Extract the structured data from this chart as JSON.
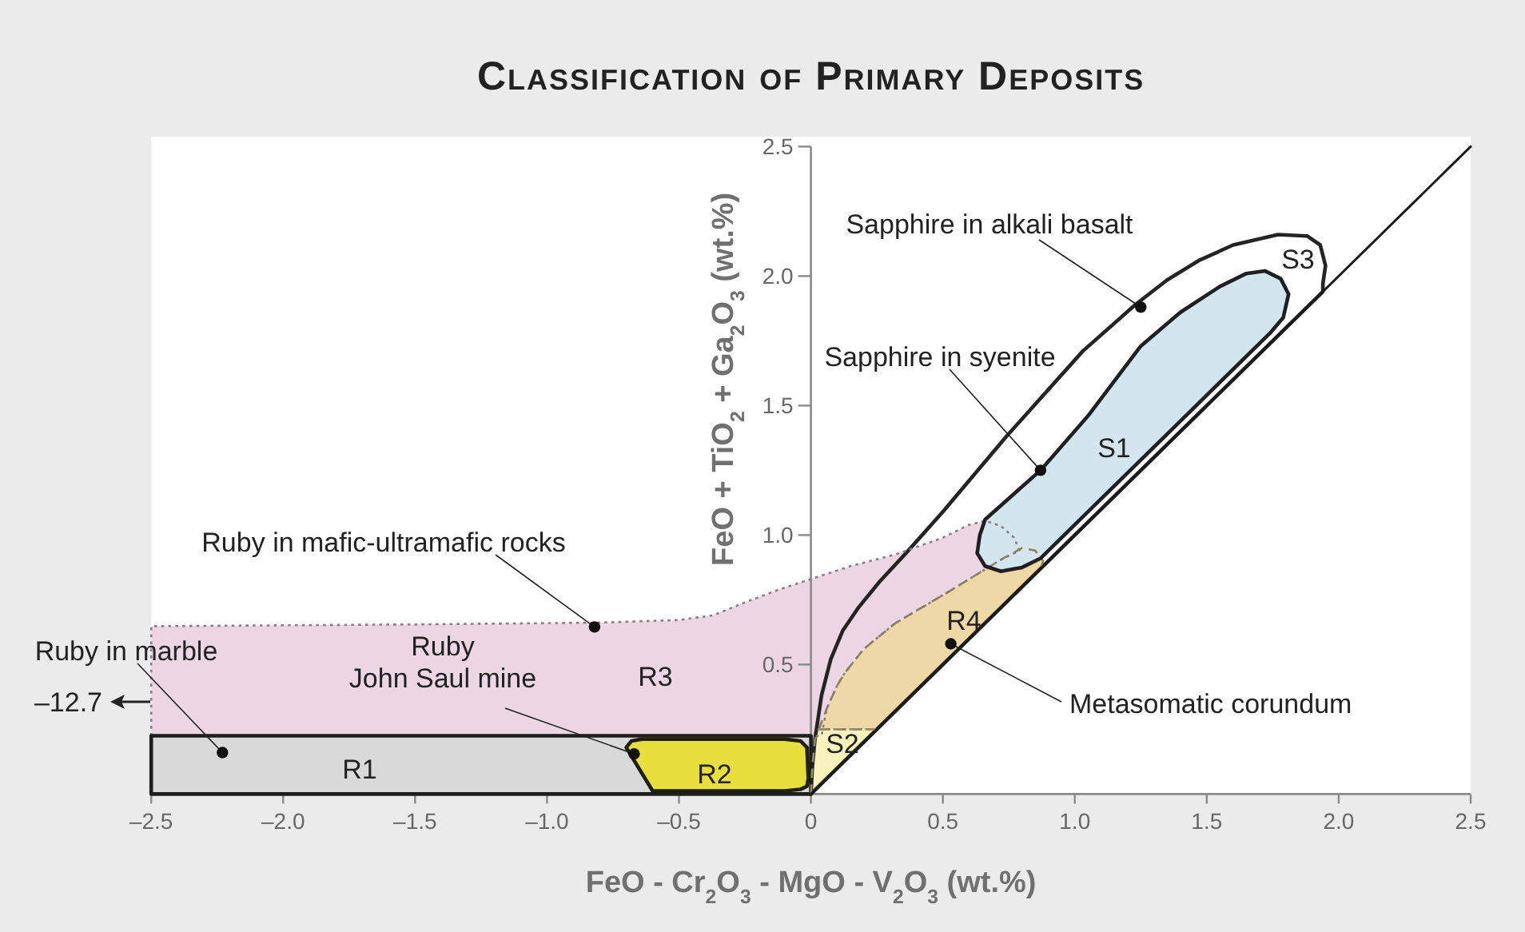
{
  "chart_data": {
    "type": "area",
    "title": "Classification of Primary Deposits",
    "xlabel": "FeO - Cr$_{2}$O$_{3}$ - MgO - V$_{2}$O$_{3}$ (wt.%)",
    "ylabel": "FeO + TiO$_{2}$ + Ga$_{2}$O$_{3}$ (wt.%)",
    "xlim": [
      -2.5,
      2.5
    ],
    "ylim": [
      0,
      2.5
    ],
    "xticks": [
      {
        "value": -2.5,
        "label": "–2.5"
      },
      {
        "value": -2,
        "label": "–2.0"
      },
      {
        "value": -1.5,
        "label": "–1.5"
      },
      {
        "value": -1,
        "label": "–1.0"
      },
      {
        "value": -0.5,
        "label": "–0.5"
      },
      0,
      0.5,
      {
        "value": 1,
        "label": "1.0"
      },
      1.5,
      {
        "value": 2,
        "label": "2.0"
      },
      2.5
    ],
    "yticks": [
      0.5,
      {
        "value": 1,
        "label": "1.0"
      },
      1.5,
      {
        "value": 2,
        "label": "2.0"
      },
      2.5
    ],
    "series": [
      {
        "name": "S3",
        "color": "#ffffff",
        "line_style": "solid",
        "x": [
          0,
          0.005,
          0.015,
          0.04,
          0.075,
          0.12,
          0.18,
          0.26,
          0.36,
          0.5,
          0.74,
          1.03,
          1.23,
          1.35,
          1.47,
          1.6,
          1.77,
          1.88,
          1.93,
          1.95,
          1.94,
          1.94
        ],
        "values": [
          0,
          0.1,
          0.21,
          0.38,
          0.52,
          0.63,
          0.72,
          0.82,
          0.93,
          1.09,
          1.38,
          1.71,
          1.89,
          1.985,
          2.06,
          2.12,
          2.16,
          2.155,
          2.12,
          2.04,
          1.97,
          1.94
        ]
      },
      {
        "name": "R3",
        "color": "#ecd6e3",
        "line_style": "dotted",
        "x": [
          -2.5,
          -2.5,
          -1.5,
          -0.8,
          -0.5,
          -0.37,
          -0.25,
          -0.12,
          0,
          0.15,
          0.32,
          0.5,
          0.6,
          0.66,
          0.72,
          0.77,
          0.79,
          0.72,
          0.52,
          0.32,
          0.2,
          0.13,
          0.1,
          0.06,
          0.04
        ],
        "values": [
          0.225,
          0.648,
          0.655,
          0.662,
          0.672,
          0.69,
          0.74,
          0.79,
          0.83,
          0.88,
          0.925,
          0.99,
          1.04,
          1.055,
          1.035,
          0.99,
          0.94,
          0.905,
          0.78,
          0.66,
          0.56,
          0.47,
          0.42,
          0.33,
          0.225
        ]
      },
      {
        "name": "R1",
        "color": "#d9d9d9",
        "line_style": "solid",
        "x": [
          -2.5,
          -2.5,
          0,
          0
        ],
        "values": [
          0,
          0.225,
          0.225,
          0
        ]
      },
      {
        "name": "R2",
        "color": "#e8df3c",
        "line_style": "solid",
        "x": [
          -0.7,
          -0.68,
          -0.64,
          -0.1,
          -0.04,
          -0.015,
          -0.01,
          -0.015,
          -0.04,
          -0.1,
          -0.6
        ],
        "values": [
          0.18,
          0.205,
          0.212,
          0.212,
          0.205,
          0.18,
          0.06,
          0.03,
          0.018,
          0.012,
          0.012
        ]
      },
      {
        "name": "R4",
        "color": "#eed9a6",
        "line_style": "dashed",
        "x": [
          0.03,
          0.06,
          0.1,
          0.13,
          0.2,
          0.32,
          0.52,
          0.72,
          0.8,
          0.85,
          0.88,
          0.87,
          0.25
        ],
        "values": [
          0.25,
          0.33,
          0.42,
          0.47,
          0.56,
          0.66,
          0.78,
          0.905,
          0.95,
          0.94,
          0.9,
          0.87,
          0.25
        ]
      },
      {
        "name": "S2",
        "color": "#f9f2bd",
        "line_style": "dashed",
        "x": [
          0,
          0.005,
          0.015,
          0.03,
          0.25
        ],
        "values": [
          0,
          0.1,
          0.21,
          0.25,
          0.25
        ]
      },
      {
        "name": "S1",
        "color": "#d4e6ed",
        "line_style": "solid",
        "x": [
          0.66,
          0.87,
          1.05,
          1.25,
          1.4,
          1.55,
          1.65,
          1.72,
          1.78,
          1.81,
          1.79,
          1.74,
          1.5,
          1.2,
          1.0,
          0.87,
          0.8,
          0.72,
          0.66,
          0.63,
          0.64
        ],
        "values": [
          1.06,
          1.25,
          1.46,
          1.73,
          1.86,
          1.96,
          2.01,
          2.02,
          1.99,
          1.93,
          1.84,
          1.78,
          1.54,
          1.24,
          1.04,
          0.91,
          0.875,
          0.86,
          0.88,
          0.93,
          1.0
        ]
      },
      {
        "type": "line",
        "color": "#1a1a1a",
        "line_style": "solid",
        "x": [
          0,
          2.5
        ],
        "values": [
          0,
          2.5
        ]
      }
    ],
    "annotations": [
      {
        "text": "Sapphire in alkali basalt",
        "x": 1.25,
        "y": 1.88
      },
      {
        "text": "Sapphire in syenite",
        "x": 0.87,
        "y": 1.25
      },
      {
        "text": "Ruby in mafic-ultramafic rocks",
        "x": -0.82,
        "y": 0.645
      },
      {
        "text": "Ruby in marble",
        "x": -2.23,
        "y": 0.16
      },
      {
        "text": "Ruby\nJohn Saul mine",
        "x": -0.67,
        "y": 0.155
      },
      {
        "text": "Metasomatic corundum",
        "x": 0.53,
        "y": 0.58
      },
      "–12.7"
    ]
  }
}
